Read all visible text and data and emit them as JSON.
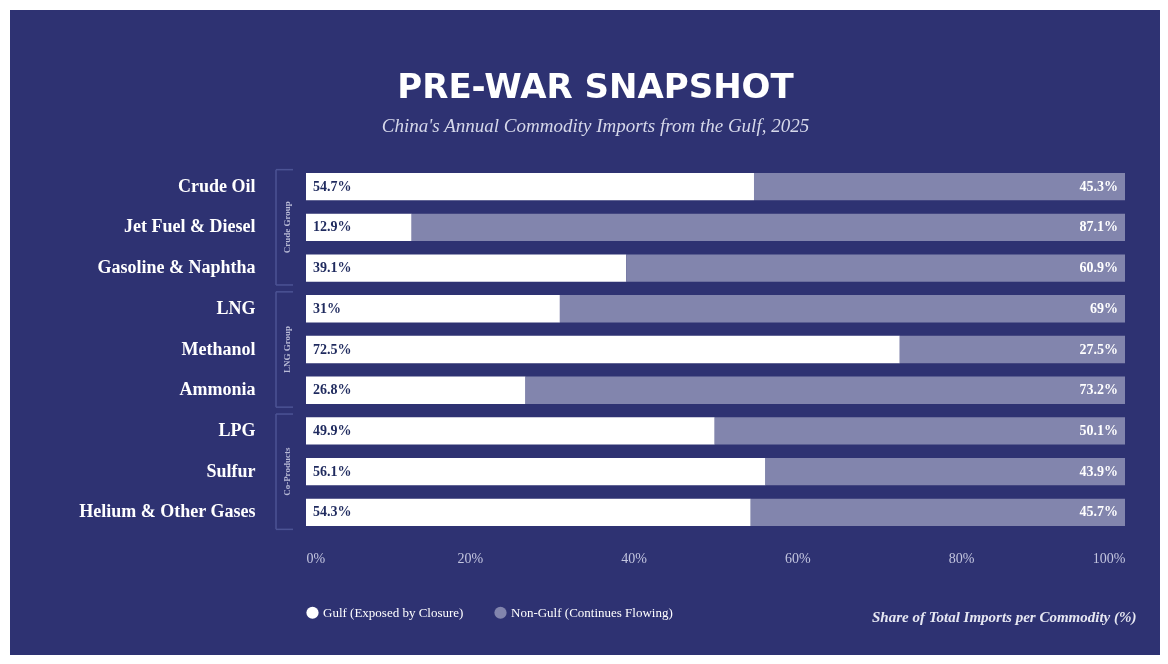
{
  "chart_data": {
    "type": "bar",
    "orientation": "horizontal",
    "stacked": true,
    "title": "PRE-WAR SNAPSHOT",
    "subtitle": "China's Annual Commodity Imports from the Gulf, 2025",
    "xlabel": "Share of Total Imports per Commodity (%)",
    "categories": [
      "Crude Oil",
      "Jet Fuel & Diesel",
      "Gasoline & Naphtha",
      "LNG",
      "Methanol",
      "Ammonia",
      "LPG",
      "Sulfur",
      "Helium & Other Gases"
    ],
    "series": [
      {
        "name": "Gulf (Exposed by Closure)",
        "color": "#ffffff",
        "values": [
          54.7,
          12.9,
          39.1,
          31,
          72.5,
          26.8,
          49.9,
          56.1,
          54.3
        ],
        "value_labels": [
          "54.7%",
          "12.9%",
          "39.1%",
          "31%",
          "72.5%",
          "26.8%",
          "49.9%",
          "56.1%",
          "54.3%"
        ]
      },
      {
        "name": "Non-Gulf (Continues Flowing)",
        "color": "#8285ad",
        "values": [
          45.3,
          87.1,
          60.9,
          69,
          27.5,
          73.2,
          50.1,
          43.9,
          45.7
        ],
        "value_labels": [
          "45.3%",
          "87.1%",
          "60.9%",
          "69%",
          "27.5%",
          "73.2%",
          "50.1%",
          "43.9%",
          "45.7%"
        ]
      }
    ],
    "xlim": [
      0,
      100
    ],
    "xticks": [
      {
        "value": 0,
        "label": "0%"
      },
      {
        "value": 20,
        "label": "20%"
      },
      {
        "value": 40,
        "label": "40%"
      },
      {
        "value": 60,
        "label": "60%"
      },
      {
        "value": 80,
        "label": "80%"
      },
      {
        "value": 100,
        "label": "100%"
      }
    ],
    "annotations": [
      "Crude Group",
      "LNG Group",
      "Co-Products"
    ],
    "legend": "bottom left",
    "grid": false
  }
}
